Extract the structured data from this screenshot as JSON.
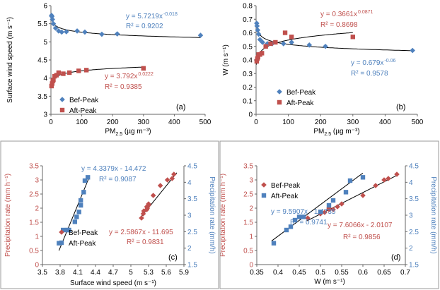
{
  "chart_data": [
    {
      "panel": "(a)",
      "type": "scatter",
      "xlabel_main": "PM",
      "xlabel_sub": "2.5",
      "xlabel_tail": " (µg m⁻³)",
      "ylabel": "Surface wind speed (m s⁻¹)",
      "xlim": [
        0,
        500
      ],
      "ylim": [
        3,
        6
      ],
      "xticks": [
        "0",
        "100",
        "200",
        "300",
        "400",
        "500"
      ],
      "yticks": [
        "3",
        "3.5",
        "4",
        "4.5",
        "5",
        "5.5",
        "6"
      ],
      "legend": "bottom-left",
      "series": [
        {
          "name": "Bef-Peak",
          "color": "#4f81bd",
          "marker": "diamond",
          "x": [
            2,
            3,
            5,
            8,
            15,
            25,
            35,
            50,
            85,
            110,
            165,
            215,
            485
          ],
          "y": [
            5.73,
            5.7,
            5.62,
            5.5,
            5.38,
            5.3,
            5.27,
            5.28,
            5.3,
            5.27,
            5.21,
            5.22,
            5.18
          ]
        },
        {
          "name": "Aft-Peak",
          "color": "#c0504d",
          "marker": "square",
          "x": [
            2,
            4,
            6,
            8,
            12,
            18,
            25,
            40,
            60,
            90,
            115,
            300
          ],
          "y": [
            3.78,
            3.85,
            3.92,
            3.95,
            4.05,
            4.08,
            4.15,
            4.12,
            4.15,
            4.2,
            4.22,
            4.27
          ]
        }
      ],
      "equations": [
        {
          "text": "y = 5.7219x",
          "exp": "-0.018",
          "r2": "R² = 0.9202",
          "color": "#4f81bd"
        },
        {
          "text": "y = 3.792x",
          "exp": "0.0222",
          "r2": "R² = 0.9385",
          "color": "#c0504d"
        }
      ]
    },
    {
      "panel": "(b)",
      "type": "scatter",
      "xlabel_main": "PM",
      "xlabel_sub": "2.5",
      "xlabel_tail": " (µg m⁻³)",
      "ylabel": "W (m s⁻¹)",
      "xlim": [
        0,
        500
      ],
      "ylim": [
        0,
        0.8
      ],
      "xticks": [
        "0",
        "100",
        "200",
        "300",
        "400",
        "500"
      ],
      "yticks": [
        "0",
        "0.1",
        "0.2",
        "0.3",
        "0.4",
        "0.5",
        "0.6",
        "0.7",
        "0.8"
      ],
      "legend": "bottom-center",
      "series": [
        {
          "name": "Bef-Peak",
          "color": "#4f81bd",
          "marker": "diamond",
          "x": [
            2,
            3,
            5,
            8,
            12,
            20,
            35,
            50,
            85,
            110,
            165,
            215,
            485
          ],
          "y": [
            0.67,
            0.65,
            0.62,
            0.59,
            0.55,
            0.53,
            0.52,
            0.52,
            0.52,
            0.53,
            0.51,
            0.5,
            0.47
          ]
        },
        {
          "name": "Aft-Peak",
          "color": "#c0504d",
          "marker": "square",
          "x": [
            2,
            4,
            6,
            8,
            12,
            18,
            30,
            45,
            60,
            90,
            110,
            300
          ],
          "y": [
            0.39,
            0.41,
            0.42,
            0.44,
            0.44,
            0.45,
            0.5,
            0.52,
            0.53,
            0.6,
            0.57,
            0.57
          ]
        }
      ],
      "equations": [
        {
          "text": "y = 0.3661x",
          "exp": "0.0871",
          "r2": "R² = 0.8698",
          "color": "#c0504d"
        },
        {
          "text": "y = 0.679x",
          "exp": "-0.06",
          "r2": "R² = 0.9578",
          "color": "#4f81bd"
        }
      ]
    },
    {
      "panel": "(c)",
      "type": "scatter",
      "xlabel": "Surface wind speed (m s⁻¹)",
      "ylabel_left": "Precipitation rate  (mm h⁻¹)",
      "ylabel_right": "Precipitation rate (mm/h)",
      "xlim": [
        3.5,
        5.9
      ],
      "ylim_left": [
        0,
        3.5
      ],
      "ylim_right": [
        1.5,
        4.5
      ],
      "xticks": [
        "3.5",
        "3.8",
        "4.1",
        "4.4",
        "4.7",
        "5",
        "5.3",
        "5.6",
        "5.9"
      ],
      "yticks_left": [
        "0",
        "0.5",
        "1",
        "1.5",
        "2",
        "2.5",
        "3",
        "3.5"
      ],
      "yticks_right": [
        "1.5",
        "2",
        "2.5",
        "3",
        "3.5",
        "4",
        "4.5"
      ],
      "legend": "center-left",
      "series": [
        {
          "name": "Bef-Peak",
          "color": "#c0504d",
          "marker": "diamond",
          "axis": "left",
          "x": [
            5.18,
            5.21,
            5.22,
            5.27,
            5.28,
            5.27,
            5.3,
            5.3,
            5.38,
            5.5,
            5.62,
            5.7,
            5.73
          ],
          "y": [
            1.65,
            1.8,
            1.9,
            1.95,
            2.0,
            2.05,
            2.1,
            2.15,
            2.45,
            2.8,
            3.0,
            3.05,
            3.2
          ]
        },
        {
          "name": "Aft-Peak",
          "color": "#4f81bd",
          "marker": "square",
          "axis": "right",
          "x": [
            3.78,
            3.85,
            3.92,
            3.95,
            4.05,
            4.08,
            4.12,
            4.15,
            4.15,
            4.2,
            4.22,
            4.27
          ],
          "y": [
            2.15,
            2.55,
            2.55,
            2.55,
            2.8,
            2.95,
            3.1,
            3.3,
            3.45,
            3.7,
            4.05,
            4.15
          ]
        }
      ],
      "equations": [
        {
          "text": "y = 4.3379x - 14.472",
          "r2": "R² = 0.9087",
          "color": "#4f81bd"
        },
        {
          "text": "y = 2.5867x - 11.695",
          "r2": "R² = 0.9831",
          "color": "#c0504d"
        }
      ]
    },
    {
      "panel": "(d)",
      "type": "scatter",
      "xlabel": "W (m s⁻¹)",
      "ylabel_left": "Precipitation rate  (mm h⁻¹)",
      "ylabel_right": "Precipitation rate (mm/h)",
      "xlim": [
        0.35,
        0.7
      ],
      "ylim_left": [
        0,
        3.5
      ],
      "ylim_right": [
        1.5,
        4.5
      ],
      "xticks": [
        "0.35",
        "0.4",
        "0.45",
        "0.5",
        "0.55",
        "0.6",
        "0.65",
        "0.7"
      ],
      "yticks_left": [
        "0",
        "0.5",
        "1",
        "1.5",
        "2",
        "2.5",
        "3",
        "3.5"
      ],
      "yticks_right": [
        "1.5",
        "2",
        "2.5",
        "3",
        "3.5",
        "4",
        "4.5"
      ],
      "legend": "top-left",
      "series": [
        {
          "name": "Bef-Peak",
          "color": "#c0504d",
          "marker": "diamond",
          "axis": "left",
          "x": [
            0.47,
            0.5,
            0.51,
            0.52,
            0.52,
            0.53,
            0.54,
            0.55,
            0.6,
            0.63,
            0.65,
            0.66,
            0.68
          ],
          "y": [
            1.65,
            1.8,
            1.85,
            1.95,
            2.0,
            1.95,
            2.05,
            2.15,
            2.45,
            2.8,
            3.0,
            3.05,
            3.2
          ]
        },
        {
          "name": "Aft-Peak",
          "color": "#4f81bd",
          "marker": "square",
          "axis": "right",
          "x": [
            0.39,
            0.42,
            0.43,
            0.44,
            0.45,
            0.46,
            0.5,
            0.52,
            0.53,
            0.56,
            0.57,
            0.6
          ],
          "y": [
            2.15,
            2.55,
            2.65,
            2.85,
            2.95,
            2.95,
            3.1,
            3.3,
            3.45,
            3.7,
            4.05,
            4.15
          ]
        }
      ],
      "equations": [
        {
          "text": "y = 9.5907x - 1.4735",
          "r2": "R² = 0.9741",
          "color": "#4f81bd"
        },
        {
          "text": "y = 7.6066x - 2.0107",
          "r2": "R² = 0.9856",
          "color": "#c0504d"
        }
      ]
    }
  ]
}
